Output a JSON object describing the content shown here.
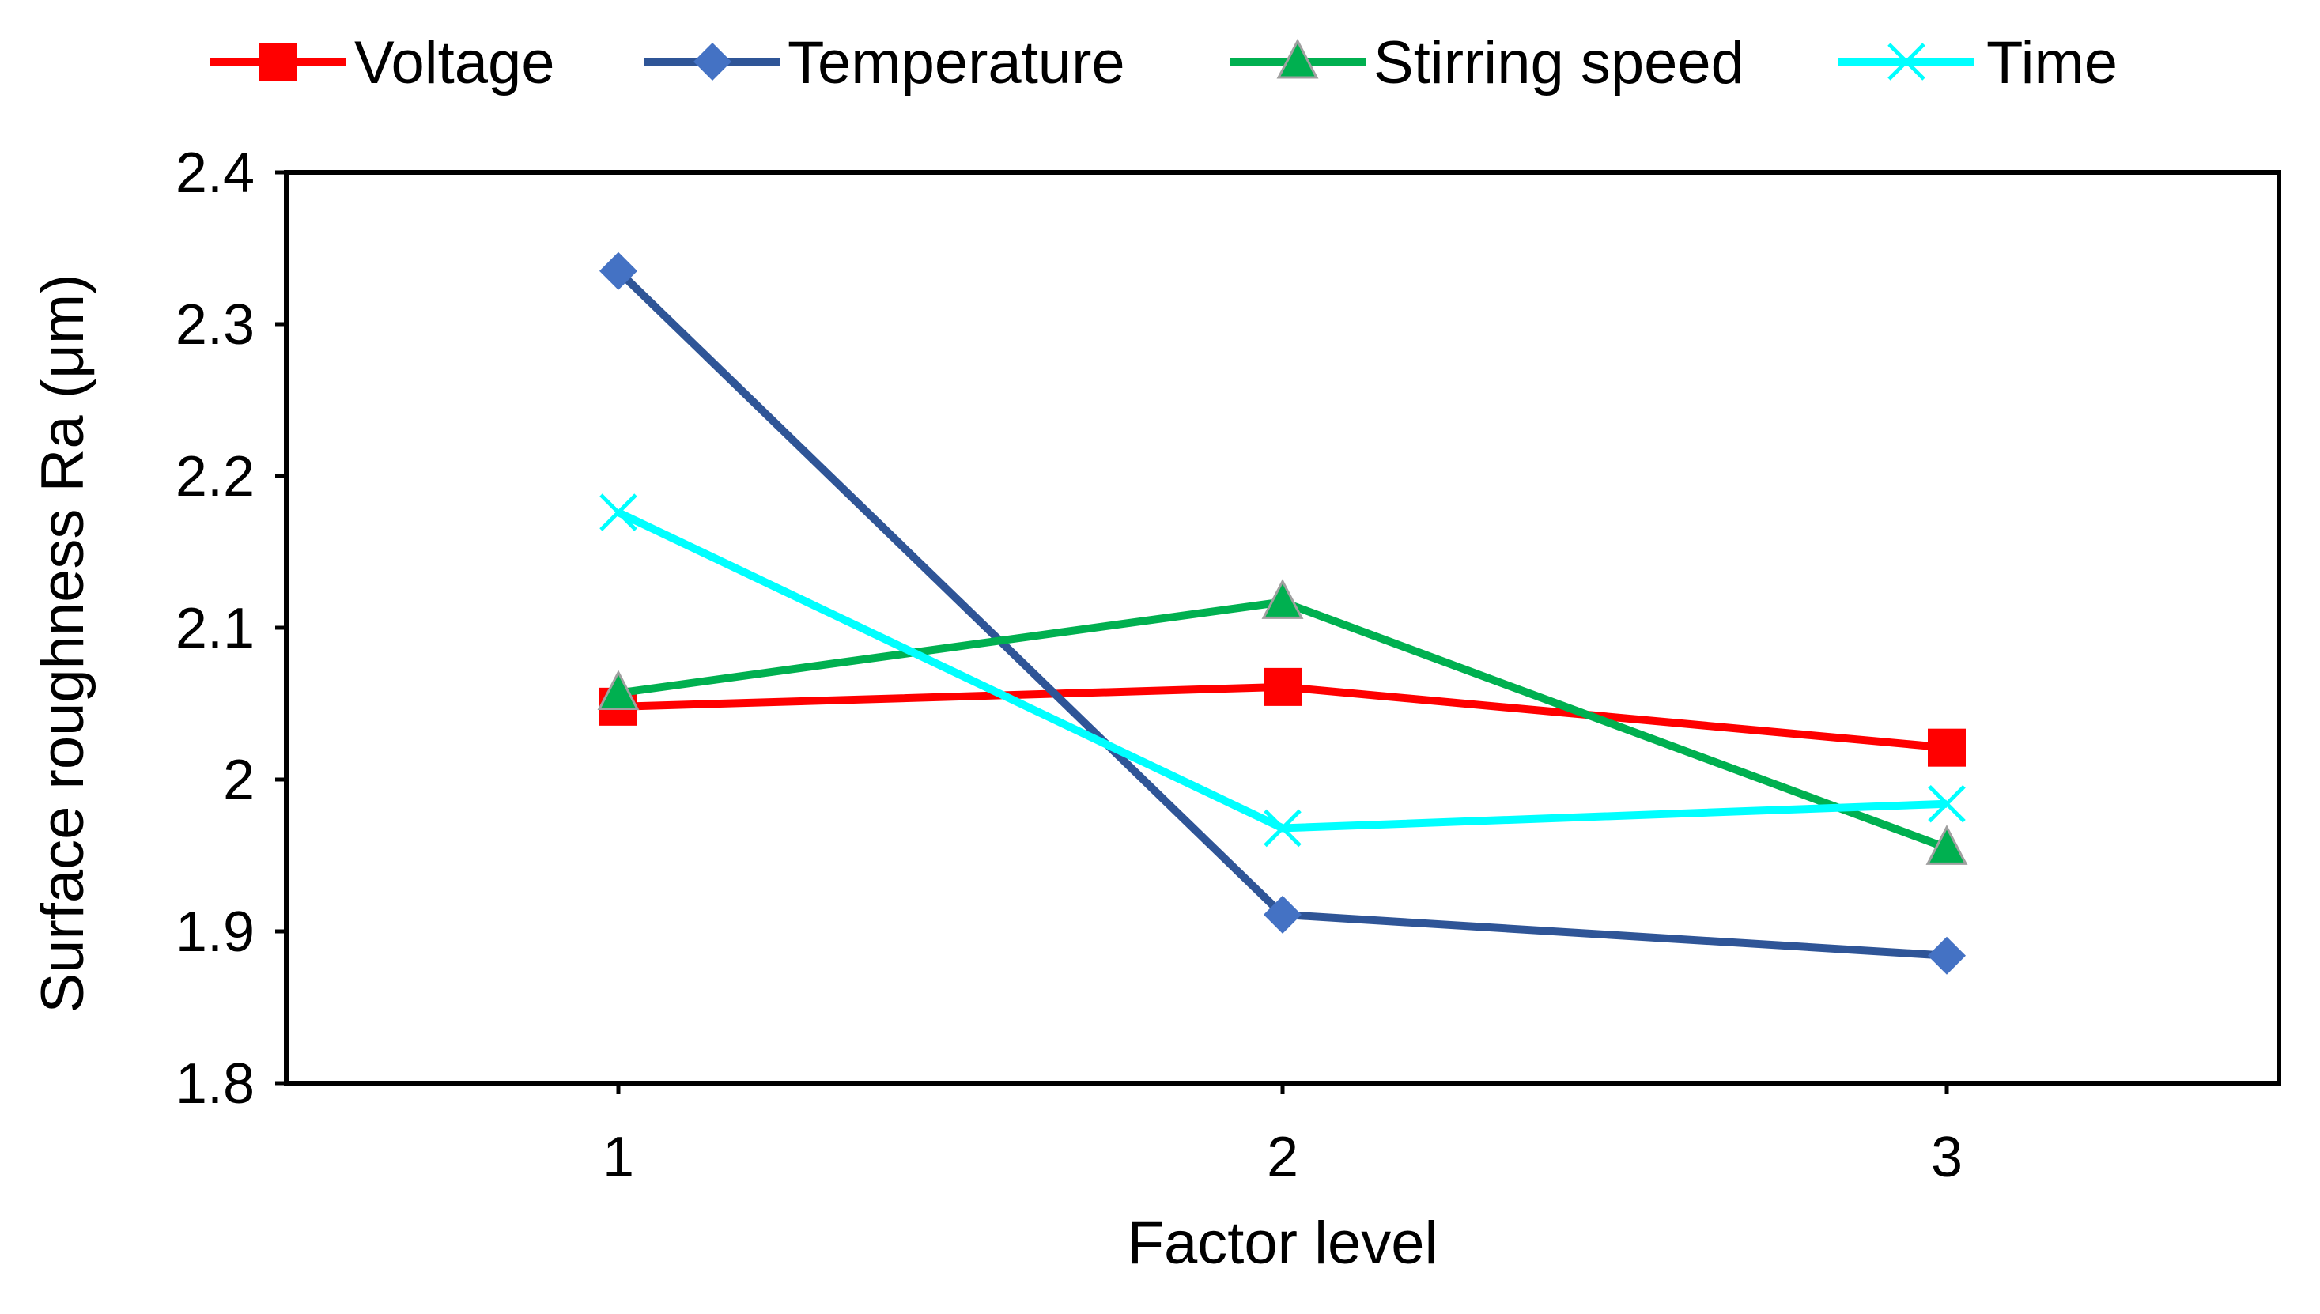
{
  "chart_data": {
    "type": "line",
    "title": "",
    "xlabel": "Factor level",
    "ylabel": "Surface roughness Ra (μm)",
    "x": [
      1,
      2,
      3
    ],
    "x_tick_labels": [
      "1",
      "2",
      "3"
    ],
    "xlim": [
      0.5,
      3.5
    ],
    "ylim": [
      1.8,
      2.4
    ],
    "y_ticks": [
      1.8,
      1.9,
      2.0,
      2.1,
      2.2,
      2.3,
      2.4
    ],
    "y_tick_labels": [
      "1.8",
      "1.9",
      "2",
      "2.1",
      "2.2",
      "2.3",
      "2.4"
    ],
    "grid": false,
    "legend_position": "top",
    "series": [
      {
        "name": "Voltage",
        "values": [
          2.048,
          2.061,
          2.021
        ],
        "color": "#ff0000",
        "marker": "square"
      },
      {
        "name": "Temperature",
        "values": [
          2.335,
          1.911,
          1.884
        ],
        "color": "#2f5597",
        "marker_color": "#4472c4",
        "marker": "diamond"
      },
      {
        "name": "Stirring speed",
        "values": [
          2.057,
          2.117,
          1.955
        ],
        "color": "#00b050",
        "marker": "triangle"
      },
      {
        "name": "Time",
        "values": [
          2.176,
          1.968,
          1.984
        ],
        "color": "#00ffff",
        "marker": "x"
      }
    ]
  }
}
